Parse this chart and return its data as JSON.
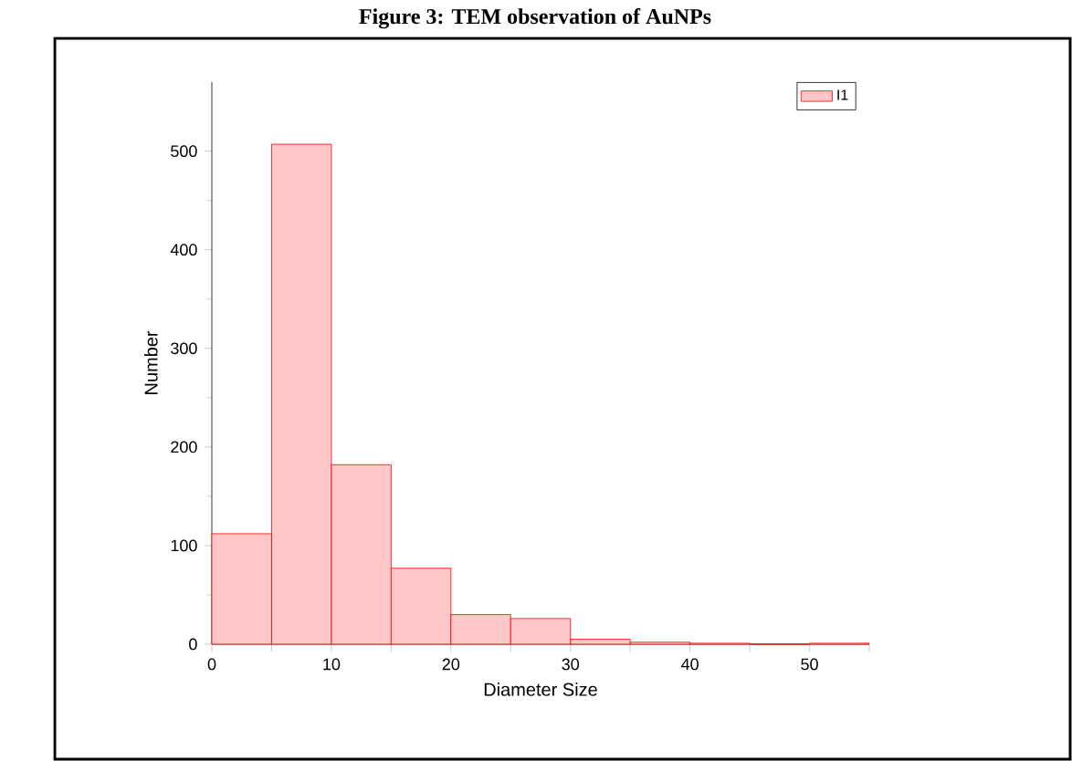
{
  "chart_data": {
    "type": "histogram",
    "title": "Figure 3: TEM observation of AuNPs",
    "xlabel": "Diameter Size",
    "ylabel": "Number",
    "bins": [
      0,
      5,
      10,
      15,
      20,
      25,
      30,
      35,
      40,
      45,
      50,
      55
    ],
    "series": [
      {
        "name": "I1",
        "color": "#ff0000",
        "values": [
          112,
          507,
          182,
          77,
          30,
          26,
          5,
          2,
          1,
          0,
          1
        ]
      }
    ],
    "xlim": [
      0,
      55
    ],
    "ylim": [
      0,
      570
    ],
    "xticks": [
      0,
      {
        "value": 5,
        "label": null
      },
      10,
      {
        "value": 15,
        "label": null
      },
      20,
      {
        "value": 25,
        "label": null
      },
      30,
      {
        "value": 35,
        "label": null
      },
      40,
      {
        "value": 45,
        "label": null
      },
      50,
      {
        "value": 55,
        "label": null
      }
    ],
    "yticks": [
      0,
      100,
      200,
      300,
      400,
      500
    ],
    "legend": "top right",
    "grid": false
  }
}
